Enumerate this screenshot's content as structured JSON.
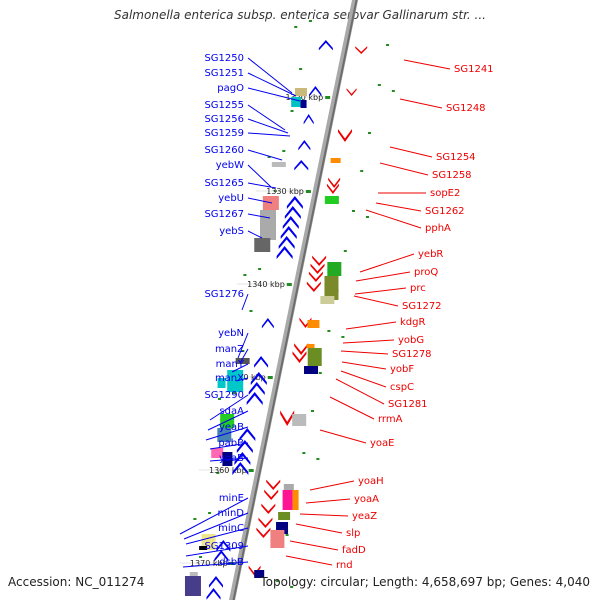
{
  "title": "Salmonella enterica subsp. enterica serovar Gallinarum str. ...",
  "accession": "Accession: NC_011274",
  "topology": "Topology: circular; Length: 4,658,697 bp; Genes: 4,040",
  "kbp_labels": [
    "1320 kbp",
    "1330 kbp",
    "1340 kbp",
    "1350 kbp",
    "1360 kbp",
    "1370 kbp"
  ],
  "left_genes": [
    "SG1250",
    "SG1251",
    "pagO",
    "SG1255",
    "SG1256",
    "SG1259",
    "SG1260",
    "yebW",
    "SG1265",
    "yebU",
    "SG1267",
    "yebS",
    "SG1276",
    "yebN",
    "manZ",
    "manY",
    "manX",
    "SG1290",
    "sdaA",
    "yeaB",
    "pabB",
    "yoaB",
    "minE",
    "minD",
    "minC",
    "SG1309",
    "dsbB"
  ],
  "right_genes": [
    "SG1241",
    "SG1248",
    "SG1254",
    "SG1258",
    "sopE2",
    "SG1262",
    "pphA",
    "yebR",
    "proQ",
    "prc",
    "SG1272",
    "kdgR",
    "yobG",
    "SG1278",
    "yobF",
    "cspC",
    "SG1281",
    "rrmA",
    "yoaE",
    "yoaH",
    "yoaA",
    "yeaZ",
    "slp",
    "fadD",
    "rnd"
  ],
  "colors": {
    "forward": "#0000ee",
    "reverse": "#ee0000",
    "backbone": "#888888",
    "tick": "#228b22"
  }
}
